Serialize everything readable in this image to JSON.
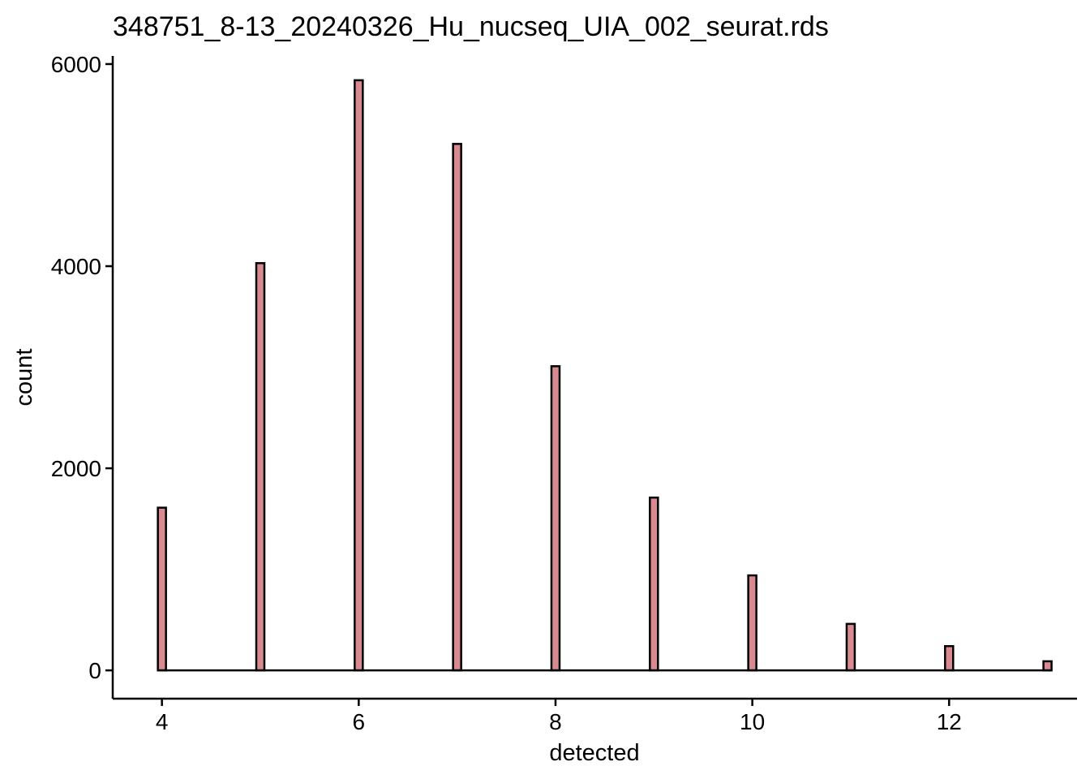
{
  "chart_data": {
    "type": "bar",
    "title": "348751_8-13_20240326_Hu_nucseq_UIA_002_seurat.rds",
    "xlabel": "detected",
    "ylabel": "count",
    "x_ticks": [
      4,
      6,
      8,
      10,
      12
    ],
    "y_ticks": [
      0,
      2000,
      4000,
      6000
    ],
    "x": [
      4,
      5,
      6,
      7,
      8,
      9,
      10,
      11,
      12,
      13
    ],
    "values": [
      1610,
      4030,
      5840,
      5210,
      3010,
      1710,
      940,
      460,
      240,
      90
    ],
    "xlim": [
      3.5,
      13.3
    ],
    "ylim": [
      -280,
      6080
    ],
    "grid": false,
    "legend": "none",
    "colors": {
      "bar_fill": "#D98A91",
      "bar_stroke": "#000000",
      "axis": "#000000"
    }
  }
}
